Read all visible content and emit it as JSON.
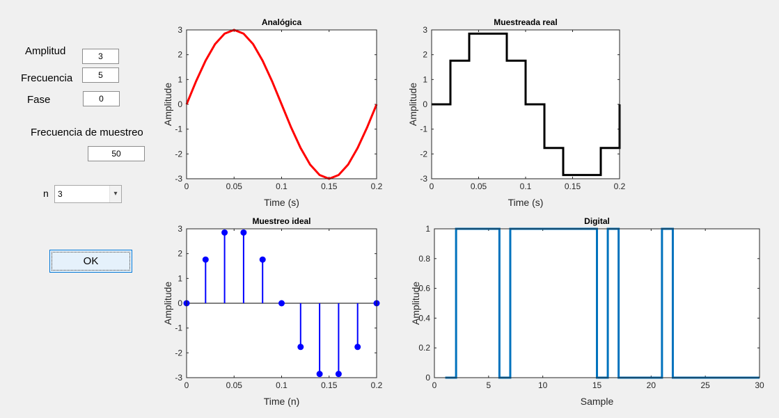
{
  "controls": {
    "amplitud_label": "Amplitud",
    "amplitud_value": "3",
    "frecuencia_label": "Frecuencia",
    "frecuencia_value": "5",
    "fase_label": "Fase",
    "fase_value": "0",
    "fs_label": "Frecuencia de muestreo",
    "fs_value": "50",
    "n_label": "n",
    "n_value": "3",
    "n_arrow_icon": "chevron-down-icon",
    "ok_label": "OK"
  },
  "colors": {
    "analog": "#ff0000",
    "real": "#000000",
    "ideal": "#0000ff",
    "digital": "#0072bd"
  },
  "chart_data": [
    {
      "id": "analog",
      "type": "line",
      "title": "Analógica",
      "xlabel": "Time (s)",
      "ylabel": "Amplitude",
      "xlim": [
        0,
        0.2
      ],
      "ylim": [
        -3,
        3
      ],
      "xticks": [
        0,
        0.05,
        0.1,
        0.15,
        0.2
      ],
      "xtick_labels": [
        "0",
        "0.05",
        "0.1",
        "0.15",
        "0.2"
      ],
      "yticks": [
        -3,
        -2,
        -1,
        0,
        1,
        2,
        3
      ],
      "ytick_labels": [
        "-3",
        "-2",
        "-1",
        "0",
        "1",
        "2",
        "3"
      ],
      "function": "3*sin(2*pi*5*t)",
      "x": [
        0,
        0.01,
        0.02,
        0.03,
        0.04,
        0.05,
        0.06,
        0.07,
        0.08,
        0.09,
        0.1,
        0.11,
        0.12,
        0.13,
        0.14,
        0.15,
        0.16,
        0.17,
        0.18,
        0.19,
        0.2
      ],
      "y": [
        0,
        0.93,
        1.76,
        2.43,
        2.85,
        3,
        2.85,
        2.43,
        1.76,
        0.93,
        0,
        -0.93,
        -1.76,
        -2.43,
        -2.85,
        -3,
        -2.85,
        -2.43,
        -1.76,
        -0.93,
        0
      ],
      "color": "#ff0000"
    },
    {
      "id": "real",
      "type": "line",
      "title": "Muestreada real",
      "xlabel": "Time (s)",
      "ylabel": "Amplitude",
      "xlim": [
        0,
        0.2
      ],
      "ylim": [
        -3,
        3
      ],
      "xticks": [
        0,
        0.05,
        0.1,
        0.15,
        0.2
      ],
      "xtick_labels": [
        "0",
        "0.05",
        "0.1",
        "0.15",
        "0.2"
      ],
      "yticks": [
        -3,
        -2,
        -1,
        0,
        1,
        2,
        3
      ],
      "ytick_labels": [
        "-3",
        "-2",
        "-1",
        "0",
        "1",
        "2",
        "3"
      ],
      "x": [
        0,
        0.02,
        0.02,
        0.04,
        0.04,
        0.06,
        0.06,
        0.08,
        0.08,
        0.1,
        0.1,
        0.12,
        0.12,
        0.14,
        0.14,
        0.16,
        0.16,
        0.18,
        0.18,
        0.2,
        0.2
      ],
      "y": [
        0,
        0,
        1.76,
        1.76,
        2.85,
        2.85,
        2.85,
        2.85,
        1.76,
        1.76,
        0,
        0,
        -1.76,
        -1.76,
        -2.85,
        -2.85,
        -2.85,
        -2.85,
        -1.76,
        -1.76,
        0
      ],
      "color": "#000000"
    },
    {
      "id": "ideal",
      "type": "scatter",
      "title": "Muestreo ideal",
      "xlabel": "Time (n)",
      "ylabel": "Amplitude",
      "xlim": [
        0,
        0.2
      ],
      "ylim": [
        -3,
        3
      ],
      "xticks": [
        0,
        0.05,
        0.1,
        0.15,
        0.2
      ],
      "xtick_labels": [
        "0",
        "0.05",
        "0.1",
        "0.15",
        "0.2"
      ],
      "yticks": [
        -3,
        -2,
        -1,
        0,
        1,
        2,
        3
      ],
      "ytick_labels": [
        "-3",
        "-2",
        "-1",
        "0",
        "1",
        "2",
        "3"
      ],
      "x": [
        0,
        0.02,
        0.04,
        0.06,
        0.08,
        0.1,
        0.12,
        0.14,
        0.16,
        0.18,
        0.2
      ],
      "y": [
        0,
        1.76,
        2.85,
        2.85,
        1.76,
        0,
        -1.76,
        -2.85,
        -2.85,
        -1.76,
        0
      ],
      "color": "#0000ff"
    },
    {
      "id": "digital",
      "type": "line",
      "title": "Digital",
      "xlabel": "Sample",
      "ylabel": "Amplitude",
      "xlim": [
        0,
        30
      ],
      "ylim": [
        0,
        1
      ],
      "xticks": [
        0,
        5,
        10,
        15,
        20,
        25,
        30
      ],
      "xtick_labels": [
        "0",
        "5",
        "10",
        "15",
        "20",
        "25",
        "30"
      ],
      "yticks": [
        0,
        0.2,
        0.4,
        0.6,
        0.8,
        1
      ],
      "ytick_labels": [
        "0",
        "0.2",
        "0.4",
        "0.6",
        "0.8",
        "1"
      ],
      "x": [
        1,
        2,
        2,
        6,
        6,
        7,
        7,
        15,
        15,
        16,
        16,
        17,
        17,
        21,
        21,
        22,
        22,
        30
      ],
      "y": [
        0,
        0,
        1,
        1,
        0,
        0,
        1,
        1,
        0,
        0,
        1,
        1,
        0,
        0,
        1,
        1,
        0,
        0
      ],
      "color": "#0072bd"
    }
  ]
}
